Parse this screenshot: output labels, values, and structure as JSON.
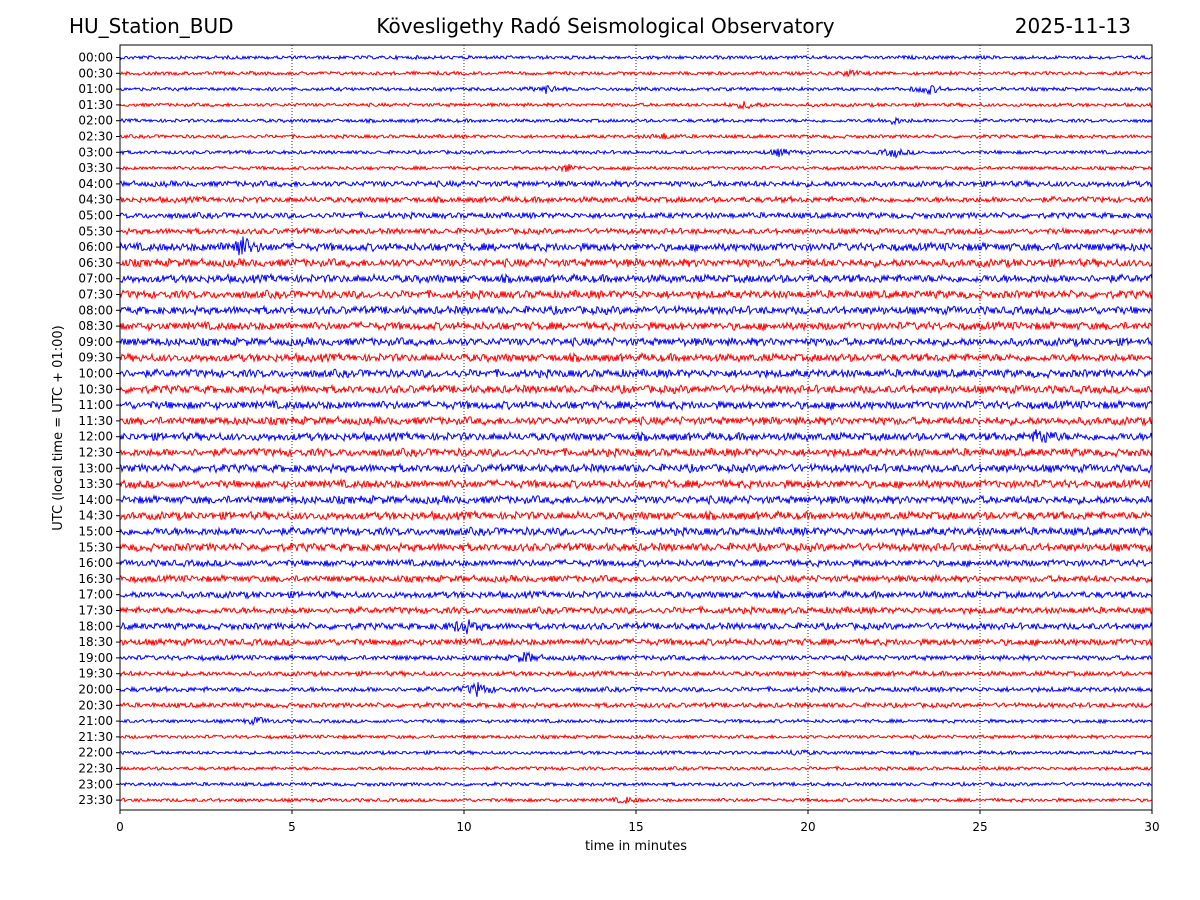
{
  "header": {
    "station": "HU_Station_BUD",
    "observatory": "Kövesligethy Radó Seismological Observatory",
    "date": "2025-11-13"
  },
  "chart_data": {
    "type": "line",
    "title": "Kövesligethy Radó Seismological Observatory",
    "xlabel": "time in minutes",
    "ylabel": "UTC (local time = UTC + 01:00)",
    "xlim": [
      0,
      30
    ],
    "x_ticks": [
      0,
      5,
      10,
      15,
      20,
      25,
      30
    ],
    "grid": "vertical dotted at x ticks",
    "colors": [
      "#0000ff",
      "#ff0000"
    ],
    "rows": [
      "00:00",
      "00:30",
      "01:00",
      "01:30",
      "02:00",
      "02:30",
      "03:00",
      "03:30",
      "04:00",
      "04:30",
      "05:00",
      "05:30",
      "06:00",
      "06:30",
      "07:00",
      "07:30",
      "08:00",
      "08:30",
      "09:00",
      "09:30",
      "10:00",
      "10:30",
      "11:00",
      "11:30",
      "12:00",
      "12:30",
      "13:00",
      "13:30",
      "14:00",
      "14:30",
      "15:00",
      "15:30",
      "16:00",
      "16:30",
      "17:00",
      "17:30",
      "18:00",
      "18:30",
      "19:00",
      "19:30",
      "20:00",
      "20:30",
      "21:00",
      "21:30",
      "22:00",
      "22:30",
      "23:00",
      "23:30"
    ],
    "bursts": [
      {
        "row": "00:30",
        "minute": 21.2,
        "amp": 1.6
      },
      {
        "row": "01:00",
        "minute": 12.4,
        "amp": 2.2
      },
      {
        "row": "01:00",
        "minute": 23.5,
        "amp": 2.8
      },
      {
        "row": "01:30",
        "minute": 18.2,
        "amp": 2.2
      },
      {
        "row": "02:00",
        "minute": 22.5,
        "amp": 1.8
      },
      {
        "row": "02:30",
        "minute": 15.8,
        "amp": 1.5
      },
      {
        "row": "03:00",
        "minute": 19.2,
        "amp": 2.0
      },
      {
        "row": "03:00",
        "minute": 22.5,
        "amp": 2.6
      },
      {
        "row": "03:30",
        "minute": 13.0,
        "amp": 2.2
      },
      {
        "row": "06:00",
        "minute": 3.5,
        "amp": 3.0
      },
      {
        "row": "12:00",
        "minute": 26.8,
        "amp": 1.8
      },
      {
        "row": "18:00",
        "minute": 10.0,
        "amp": 2.2
      },
      {
        "row": "19:00",
        "minute": 11.8,
        "amp": 2.2
      },
      {
        "row": "20:00",
        "minute": 10.4,
        "amp": 2.8
      },
      {
        "row": "21:00",
        "minute": 4.0,
        "amp": 2.0
      },
      {
        "row": "22:00",
        "minute": 19.7,
        "amp": 1.6
      },
      {
        "row": "23:30",
        "minute": 14.7,
        "amp": 1.6
      }
    ]
  }
}
